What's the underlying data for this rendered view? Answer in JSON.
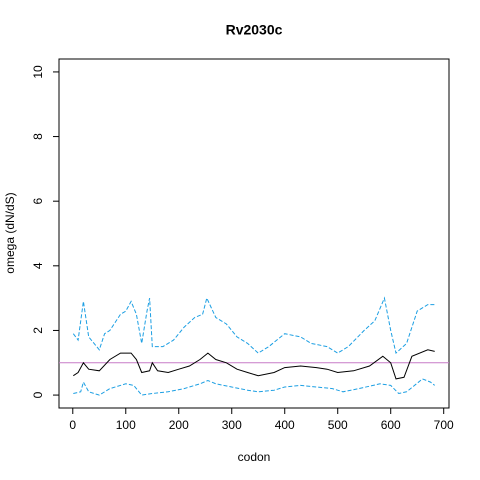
{
  "chart_data": {
    "type": "line",
    "title": "Rv2030c",
    "xlabel": "codon",
    "ylabel": "omega (dN/dS)",
    "xlim": [
      -26,
      710
    ],
    "ylim": [
      -0.4,
      10.4
    ],
    "xticks": [
      0,
      100,
      200,
      300,
      400,
      500,
      600,
      700
    ],
    "yticks": [
      0,
      2,
      4,
      6,
      8,
      10
    ],
    "hline": 1,
    "hline_color": "#c77cc7",
    "series": [
      {
        "color": "#000000",
        "dashed": false,
        "x": [
          1,
          10,
          20,
          30,
          50,
          70,
          90,
          110,
          120,
          130,
          145,
          150,
          160,
          180,
          200,
          220,
          240,
          255,
          270,
          290,
          310,
          330,
          350,
          380,
          400,
          430,
          460,
          480,
          500,
          530,
          560,
          585,
          600,
          610,
          625,
          640,
          670,
          683
        ],
        "values": [
          0.6,
          0.7,
          1.0,
          0.8,
          0.75,
          1.1,
          1.3,
          1.3,
          1.1,
          0.7,
          0.75,
          1.0,
          0.75,
          0.7,
          0.8,
          0.9,
          1.1,
          1.3,
          1.1,
          1.0,
          0.8,
          0.7,
          0.6,
          0.7,
          0.85,
          0.9,
          0.85,
          0.8,
          0.7,
          0.75,
          0.9,
          1.2,
          1.0,
          0.5,
          0.55,
          1.2,
          1.4,
          1.35
        ]
      },
      {
        "color": "#1c9fe3",
        "dashed": true,
        "x": [
          1,
          10,
          20,
          30,
          50,
          60,
          70,
          90,
          100,
          110,
          120,
          130,
          140,
          145,
          150,
          170,
          190,
          210,
          230,
          245,
          253,
          270,
          290,
          310,
          330,
          350,
          370,
          400,
          430,
          450,
          480,
          500,
          520,
          550,
          570,
          588,
          600,
          610,
          630,
          650,
          670,
          683
        ],
        "values": [
          1.9,
          1.7,
          2.9,
          1.8,
          1.4,
          1.9,
          2.0,
          2.5,
          2.6,
          2.9,
          2.5,
          1.6,
          2.6,
          3.0,
          1.5,
          1.5,
          1.7,
          2.1,
          2.4,
          2.5,
          3.0,
          2.4,
          2.2,
          1.8,
          1.6,
          1.3,
          1.5,
          1.9,
          1.8,
          1.6,
          1.5,
          1.3,
          1.5,
          2.0,
          2.3,
          3.0,
          2.0,
          1.3,
          1.6,
          2.6,
          2.8,
          2.8
        ]
      },
      {
        "color": "#1c9fe3",
        "dashed": true,
        "x": [
          1,
          15,
          20,
          30,
          50,
          70,
          100,
          115,
          130,
          150,
          180,
          210,
          240,
          255,
          270,
          300,
          330,
          350,
          380,
          400,
          430,
          460,
          490,
          510,
          540,
          580,
          600,
          615,
          630,
          660,
          675,
          683
        ],
        "values": [
          0.05,
          0.1,
          0.4,
          0.1,
          0.0,
          0.2,
          0.35,
          0.3,
          0.0,
          0.05,
          0.1,
          0.2,
          0.35,
          0.45,
          0.35,
          0.25,
          0.15,
          0.1,
          0.15,
          0.25,
          0.3,
          0.25,
          0.2,
          0.1,
          0.2,
          0.35,
          0.3,
          0.05,
          0.1,
          0.5,
          0.4,
          0.3
        ]
      }
    ]
  }
}
